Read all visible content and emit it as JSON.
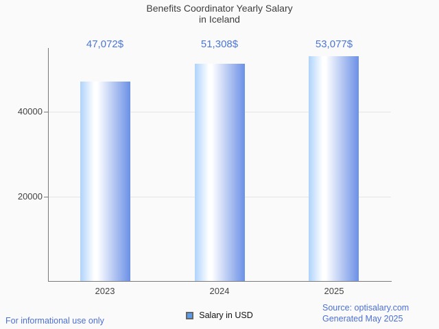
{
  "chart_data": {
    "type": "bar",
    "title_lines": [
      "Benefits Coordinator Yearly Salary",
      "in Iceland"
    ],
    "title": "Benefits Coordinator Yearly Salary in Iceland",
    "categories": [
      "2023",
      "2024",
      "2025"
    ],
    "series": [
      {
        "name": "Salary in USD",
        "values": [
          47072,
          51308,
          53077
        ]
      }
    ],
    "value_labels": [
      "47,072$",
      "51,308$",
      "53,077$"
    ],
    "xlabel": "",
    "ylabel": "",
    "ylim": [
      0,
      55000
    ],
    "yticks": [
      20000,
      40000
    ],
    "ytick_labels": [
      "20000",
      "40000"
    ],
    "grid": "horizontal-only",
    "legend": {
      "label": "Salary in USD",
      "position": "bottom-center"
    },
    "bar_gradient": [
      "#aed3fb",
      "#ffffff",
      "#6b90e6"
    ]
  },
  "footer": {
    "left_note": "For informational use only",
    "source": "Source: optisalary.com",
    "generated": "Generated May 2025"
  },
  "colors": {
    "accent_blue": "#4c76d6",
    "footer_blue": "#4c6fd4",
    "background": "#fafafa",
    "axis": "#787878",
    "grid": "#e5e5e5",
    "title_text": "#3d3d3d",
    "tick_text": "#424242",
    "legend_swatch_fill": "#5d9ae8",
    "legend_swatch_border": "#666666"
  }
}
